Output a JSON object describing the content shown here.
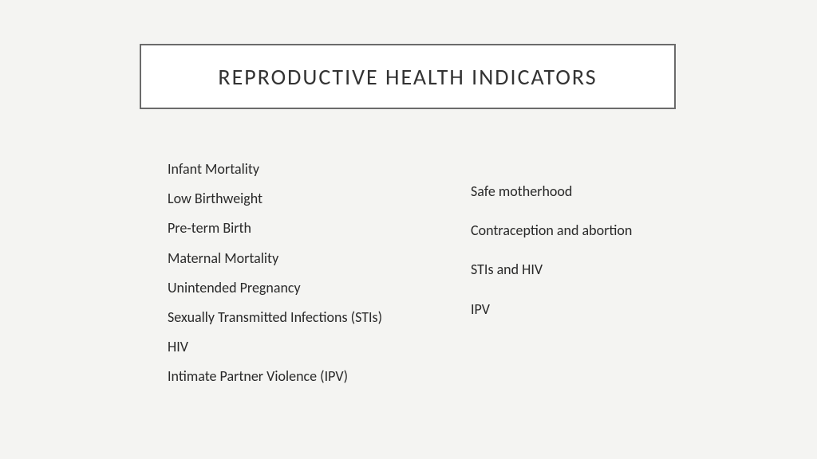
{
  "slide": {
    "title": "REPRODUCTIVE HEALTH INDICATORS",
    "background_color": "#f4f4f2",
    "title_box": {
      "background_color": "#ffffff",
      "border_color": "#6b6b6b",
      "border_width": 2,
      "font_size": 28,
      "letter_spacing": 2,
      "text_color": "#333333"
    },
    "left_column": {
      "items": [
        "Infant Mortality",
        "Low Birthweight",
        "Pre-term Birth",
        "Maternal Mortality",
        "Unintended Pregnancy",
        "Sexually Transmitted Infections (STIs)",
        "HIV",
        "Intimate Partner Violence (IPV)"
      ],
      "font_size": 18,
      "line_gap": 12
    },
    "right_column": {
      "items": [
        "Safe motherhood",
        "Contraception and abortion",
        "STIs and HIV",
        "IPV"
      ],
      "font_size": 18,
      "line_gap": 24
    }
  }
}
